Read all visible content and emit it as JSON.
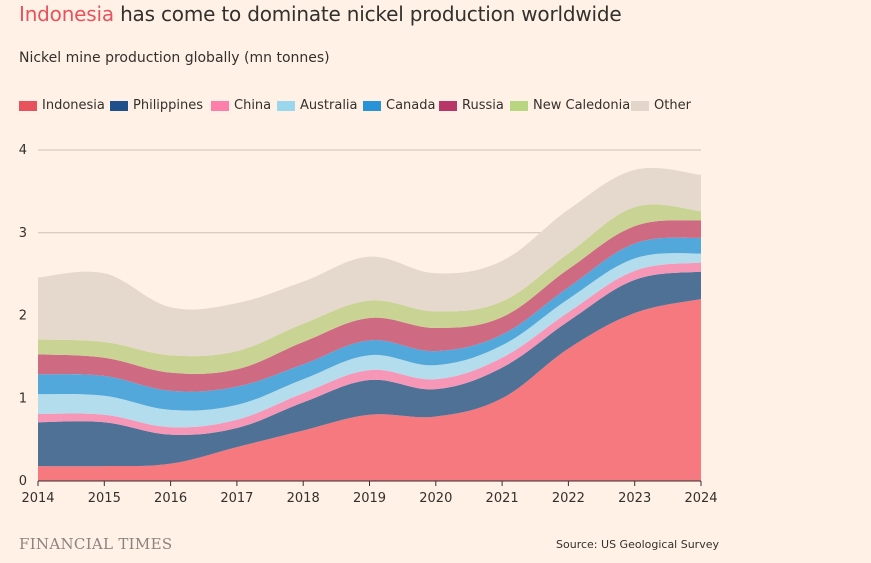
{
  "header": {
    "title_highlight": "Indonesia",
    "title_rest": " has come to dominate nickel production worldwide",
    "subtitle": "Nickel mine production globally (mn tonnes)"
  },
  "footer": {
    "logo": "FINANCIAL TIMES",
    "source": "Source: US Geological Survey"
  },
  "chart_data": {
    "type": "area",
    "stacked": true,
    "title": "Indonesia has come to dominate nickel production worldwide",
    "subtitle": "Nickel mine production globally (mn tonnes)",
    "x": [
      2014,
      2015,
      2016,
      2017,
      2018,
      2019,
      2020,
      2021,
      2022,
      2023,
      2024
    ],
    "ylim": [
      0,
      4
    ],
    "yticks": [
      0,
      1,
      2,
      3,
      4
    ],
    "grid": true,
    "legend_position": "top",
    "series": [
      {
        "name": "Indonesia",
        "color": "#f5797f",
        "legend_color": "#e8525d",
        "values": [
          0.18,
          0.18,
          0.21,
          0.41,
          0.61,
          0.8,
          0.78,
          1.0,
          1.6,
          2.03,
          2.2
        ]
      },
      {
        "name": "Philippines",
        "color": "#4f7196",
        "legend_color": "#1f508c",
        "values": [
          0.53,
          0.53,
          0.35,
          0.23,
          0.34,
          0.42,
          0.33,
          0.37,
          0.33,
          0.4,
          0.33
        ]
      },
      {
        "name": "China",
        "color": "#f797b8",
        "legend_color": "#ff7fab",
        "values": [
          0.1,
          0.09,
          0.09,
          0.1,
          0.11,
          0.12,
          0.12,
          0.12,
          0.11,
          0.11,
          0.11
        ]
      },
      {
        "name": "Australia",
        "color": "#b3dced",
        "legend_color": "#9ad7ec",
        "values": [
          0.24,
          0.23,
          0.21,
          0.18,
          0.17,
          0.18,
          0.17,
          0.15,
          0.16,
          0.15,
          0.11
        ]
      },
      {
        "name": "Canada",
        "color": "#52a8da",
        "legend_color": "#2a92d6",
        "values": [
          0.24,
          0.24,
          0.23,
          0.22,
          0.18,
          0.18,
          0.17,
          0.13,
          0.14,
          0.18,
          0.19
        ]
      },
      {
        "name": "Russia",
        "color": "#cf6a83",
        "legend_color": "#b83668",
        "values": [
          0.24,
          0.22,
          0.22,
          0.21,
          0.27,
          0.27,
          0.28,
          0.21,
          0.22,
          0.21,
          0.21
        ]
      },
      {
        "name": "New Caledonia",
        "color": "#c9d494",
        "legend_color": "#b8d57f",
        "values": [
          0.18,
          0.19,
          0.21,
          0.22,
          0.22,
          0.21,
          0.2,
          0.19,
          0.19,
          0.23,
          0.11
        ]
      },
      {
        "name": "Other",
        "color": "#e5d8cc",
        "legend_color": "#e2d5c9",
        "values": [
          0.75,
          0.83,
          0.58,
          0.58,
          0.51,
          0.53,
          0.46,
          0.49,
          0.53,
          0.45,
          0.44
        ]
      }
    ]
  }
}
